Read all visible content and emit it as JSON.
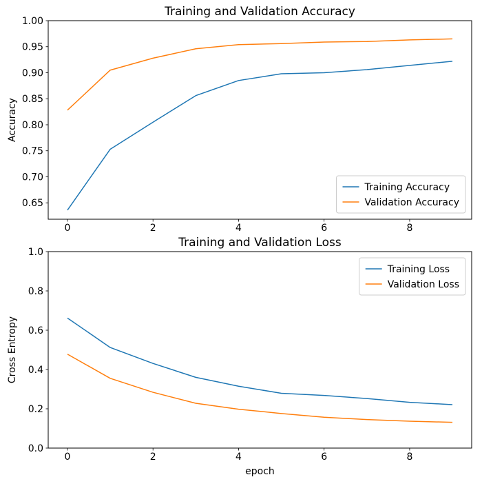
{
  "figure": {
    "background": "#ffffff",
    "text_color": "#000000",
    "axis_color": "#000000",
    "legend_border_color": "#cccccc"
  },
  "chart_data": [
    {
      "type": "line",
      "title": "Training and Validation Accuracy",
      "xlabel": "",
      "ylabel": "Accuracy",
      "x": [
        0,
        1,
        2,
        3,
        4,
        5,
        6,
        7,
        8,
        9
      ],
      "series": [
        {
          "name": "Training Accuracy",
          "color": "#1f77b4",
          "values": [
            0.636,
            0.753,
            0.805,
            0.856,
            0.885,
            0.898,
            0.9,
            0.906,
            0.914,
            0.922
          ]
        },
        {
          "name": "Validation Accuracy",
          "color": "#ff7f0e",
          "values": [
            0.828,
            0.905,
            0.928,
            0.946,
            0.954,
            0.956,
            0.959,
            0.96,
            0.963,
            0.965
          ]
        }
      ],
      "xlim": [
        -0.45,
        9.45
      ],
      "ylim": [
        0.6185,
        1.0
      ],
      "xticks": [
        0,
        2,
        4,
        6,
        8
      ],
      "xtick_labels": [
        "0",
        "2",
        "4",
        "6",
        "8"
      ],
      "yticks": [
        0.65,
        0.7,
        0.75,
        0.8,
        0.85,
        0.9,
        0.95,
        1.0
      ],
      "ytick_labels": [
        "0.65",
        "0.70",
        "0.75",
        "0.80",
        "0.85",
        "0.90",
        "0.95",
        "1.00"
      ],
      "grid": false,
      "legend_loc": "lower-right",
      "legend_entries": [
        "Training Accuracy",
        "Validation Accuracy"
      ]
    },
    {
      "type": "line",
      "title": "Training and Validation Loss",
      "xlabel": "epoch",
      "ylabel": "Cross Entropy",
      "x": [
        0,
        1,
        2,
        3,
        4,
        5,
        6,
        7,
        8,
        9
      ],
      "series": [
        {
          "name": "Training Loss",
          "color": "#1f77b4",
          "values": [
            0.662,
            0.512,
            0.431,
            0.36,
            0.315,
            0.279,
            0.268,
            0.252,
            0.233,
            0.221
          ]
        },
        {
          "name": "Validation Loss",
          "color": "#ff7f0e",
          "values": [
            0.478,
            0.355,
            0.284,
            0.228,
            0.198,
            0.176,
            0.157,
            0.145,
            0.137,
            0.131
          ]
        }
      ],
      "xlim": [
        -0.45,
        9.45
      ],
      "ylim": [
        0.0,
        1.0
      ],
      "xticks": [
        0,
        2,
        4,
        6,
        8
      ],
      "xtick_labels": [
        "0",
        "2",
        "4",
        "6",
        "8"
      ],
      "yticks": [
        0.0,
        0.2,
        0.4,
        0.6,
        0.8,
        1.0
      ],
      "ytick_labels": [
        "0.0",
        "0.2",
        "0.4",
        "0.6",
        "0.8",
        "1.0"
      ],
      "grid": false,
      "legend_loc": "upper-right",
      "legend_entries": [
        "Training Loss",
        "Validation Loss"
      ]
    }
  ]
}
